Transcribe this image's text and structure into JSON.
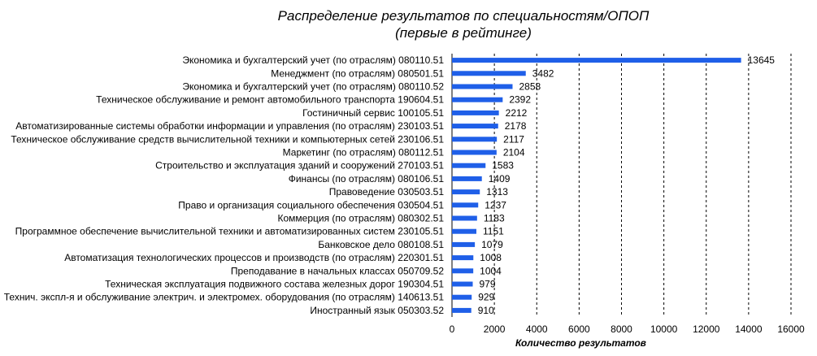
{
  "chart_data": {
    "type": "bar",
    "orientation": "horizontal",
    "title": "Распределение результатов по специальностям/ОПОП",
    "subtitle": "(первые в рейтинге)",
    "xlabel": "Количество результатов",
    "ylabel": "",
    "xlim": [
      0,
      16000
    ],
    "xticks": [
      0,
      2000,
      4000,
      6000,
      8000,
      10000,
      12000,
      14000,
      16000
    ],
    "grid": "vertical-dashed",
    "bar_color": "#1f5fe8",
    "categories": [
      "Экономика и бухгалтерский учет (по отраслям) 080110.51",
      "Менеджмент (по отраслям) 080501.51",
      "Экономика и бухгалтерский учет (по отраслям) 080110.52",
      "Техническое обслуживание и ремонт автомобильного транспорта 190604.51",
      "Гостиничный сервис 100105.51",
      "Автоматизированные системы обработки информации и управления (по отраслям) 230103.51",
      "Техническое обслуживание средств вычислительной техники и компьютерных сетей 230106.51",
      "Маркетинг (по отраслям) 080112.51",
      "Строительство и эксплуатация зданий и сооружений 270103.51",
      "Финансы (по отраслям) 080106.51",
      "Правоведение 030503.51",
      "Право и организация социального обеспечения 030504.51",
      "Коммерция (по отраслям) 080302.51",
      "Программное обеспечение вычислительной техники и автоматизированных систем 230105.51",
      "Банковское дело 080108.51",
      "Автоматизация технологических процессов и производств (по отраслям) 220301.51",
      "Преподавание в начальных классах 050709.52",
      "Техническая эксплуатация подвижного состава железных дорог 190304.51",
      "Технич. экспл-я и обслуживание электрич. и электромех. оборудования (по отраслям) 140613.51",
      "Иностранный язык 050303.52"
    ],
    "values": [
      13645,
      3482,
      2858,
      2392,
      2212,
      2178,
      2117,
      2104,
      1583,
      1409,
      1313,
      1237,
      1183,
      1151,
      1079,
      1008,
      1004,
      979,
      929,
      910
    ]
  }
}
